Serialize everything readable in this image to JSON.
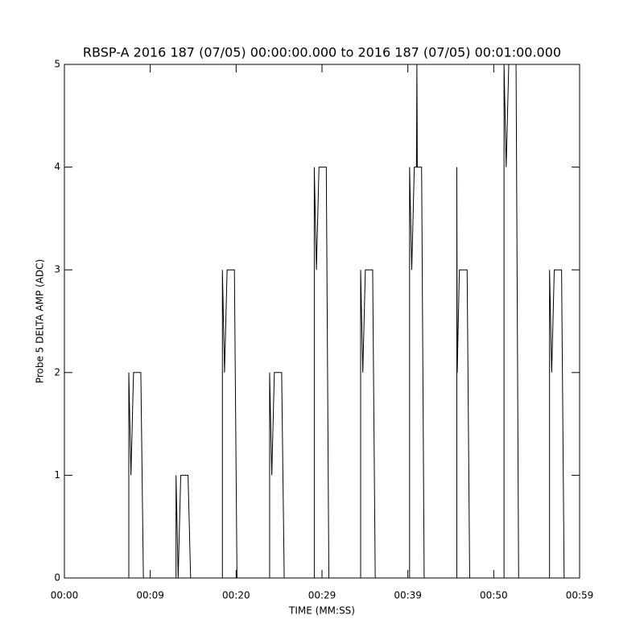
{
  "chart_data": {
    "type": "line",
    "title": "RBSP-A 2016 187 (07/05) 00:00:00.000 to 2016 187 (07/05) 00:01:00.000",
    "x_label": "TIME (MM:SS)",
    "y_label": "Probe 5 DELTA AMP (ADC)",
    "color": "#000000",
    "x": [
      0,
      7.5,
      7.5,
      7.75,
      8.05,
      8.9,
      9.2,
      13.0,
      13.0,
      13.25,
      13.55,
      14.4,
      14.7,
      18.4,
      18.4,
      18.65,
      18.95,
      19.8,
      20.1,
      23.9,
      23.9,
      24.15,
      24.45,
      25.3,
      25.6,
      29.1,
      29.1,
      29.35,
      29.65,
      30.5,
      30.8,
      34.5,
      34.5,
      34.75,
      35.05,
      35.9,
      36.2,
      40.2,
      40.2,
      40.45,
      40.75,
      41.0,
      41.05,
      41.1,
      41.6,
      41.9,
      45.7,
      45.7,
      45.75,
      46.0,
      46.9,
      47.2,
      51.2,
      51.2,
      51.45,
      51.75,
      52.6,
      52.9,
      56.5,
      56.5,
      56.75,
      57.05,
      57.9,
      58.2
    ],
    "values": [
      0,
      0,
      2,
      1,
      2,
      2,
      0,
      0,
      1,
      0,
      1,
      1,
      0,
      0,
      3,
      2,
      3,
      3,
      0,
      0,
      2,
      1,
      2,
      2,
      0,
      0,
      4,
      3,
      4,
      4,
      0,
      0,
      3,
      2,
      3,
      3,
      0,
      0,
      4,
      3,
      4,
      4,
      5,
      4,
      4,
      0,
      0,
      4,
      2,
      3,
      3,
      0,
      0,
      5,
      4,
      5,
      5,
      0,
      0,
      3,
      2,
      3,
      3,
      0
    ],
    "xlim": [
      0,
      60
    ],
    "xticks": [
      {
        "value": 0,
        "label": "00:00"
      },
      {
        "value": 10,
        "label": "00:09"
      },
      {
        "value": 20,
        "label": "00:20"
      },
      {
        "value": 30,
        "label": "00:29"
      },
      {
        "value": 40,
        "label": "00:39"
      },
      {
        "value": 50,
        "label": "00:50"
      },
      {
        "value": 60,
        "label": "00:59"
      }
    ],
    "ylim": [
      0,
      5
    ],
    "yticks": [
      0,
      1,
      2,
      3,
      4,
      5
    ]
  }
}
